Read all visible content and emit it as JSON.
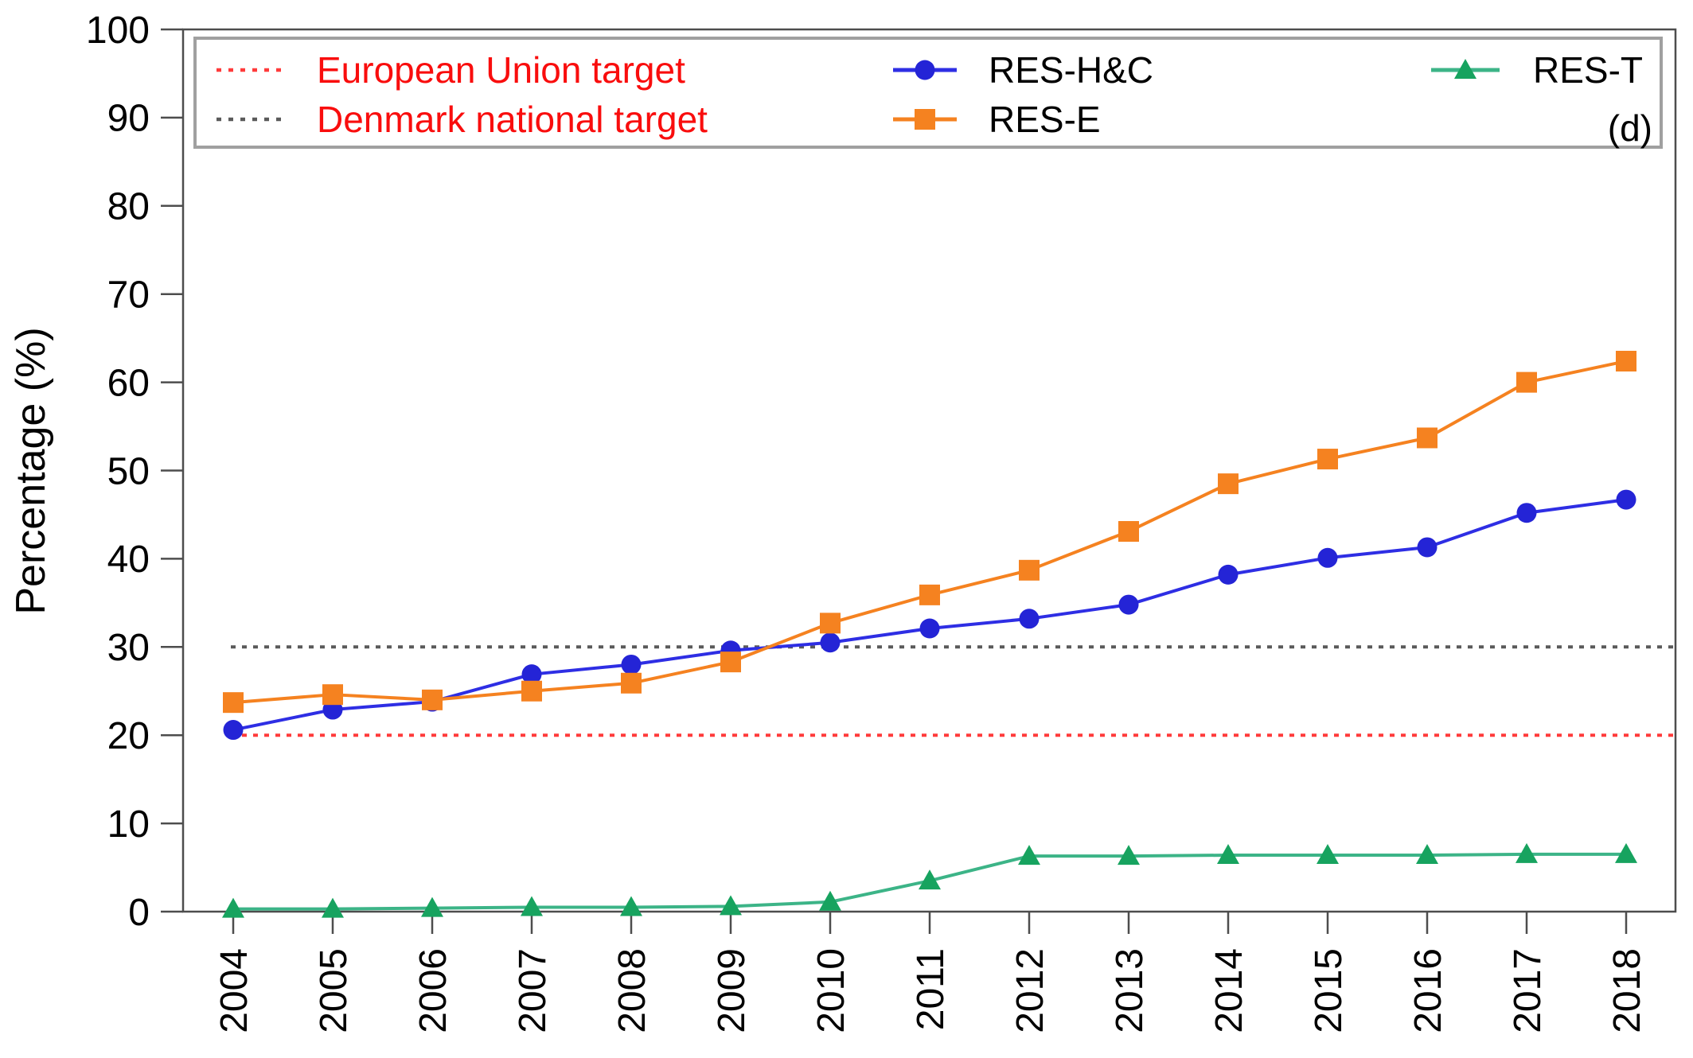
{
  "figure": {
    "panel_label": "(d)",
    "background": "#ffffff",
    "axis_color": "#4d4d4d",
    "tick_label_color": "#000000"
  },
  "chart_data": {
    "type": "line",
    "title": "",
    "xlabel": "",
    "ylabel": "Percentage (%)",
    "ylim": [
      0,
      100
    ],
    "ytick_step": 10,
    "grid": false,
    "legend_position": "top",
    "x": [
      2004,
      2005,
      2006,
      2007,
      2008,
      2009,
      2010,
      2011,
      2012,
      2013,
      2014,
      2015,
      2016,
      2017,
      2018
    ],
    "series": [
      {
        "name": "RES-H&C",
        "marker": "circle",
        "color": "#2E2EE4",
        "marker_color": "#2424D6",
        "values": [
          20.6,
          22.9,
          23.8,
          26.9,
          28.0,
          29.6,
          30.5,
          32.1,
          33.2,
          34.8,
          38.2,
          40.1,
          41.3,
          45.2,
          46.7
        ]
      },
      {
        "name": "RES-E",
        "marker": "square",
        "color": "#F58220",
        "marker_color": "#F58220",
        "values": [
          23.7,
          24.6,
          24.0,
          25.0,
          25.9,
          28.3,
          32.7,
          35.9,
          38.7,
          43.1,
          48.5,
          51.3,
          53.7,
          60.0,
          62.4
        ]
      },
      {
        "name": "RES-T",
        "marker": "triangle",
        "color": "#3CB487",
        "marker_color": "#17A35F",
        "values": [
          0.3,
          0.3,
          0.4,
          0.5,
          0.5,
          0.6,
          1.1,
          3.5,
          6.3,
          6.3,
          6.4,
          6.4,
          6.4,
          6.5,
          6.5
        ]
      }
    ],
    "reference_lines": [
      {
        "name": "European Union target",
        "value": 20,
        "color": "#FF3B3B",
        "style": "dotted",
        "label_color": "#F90D0D"
      },
      {
        "name": "Denmark national  target",
        "value": 30,
        "color": "#5A5A5A",
        "style": "dotted",
        "label_color": "#F90D0D"
      }
    ]
  }
}
